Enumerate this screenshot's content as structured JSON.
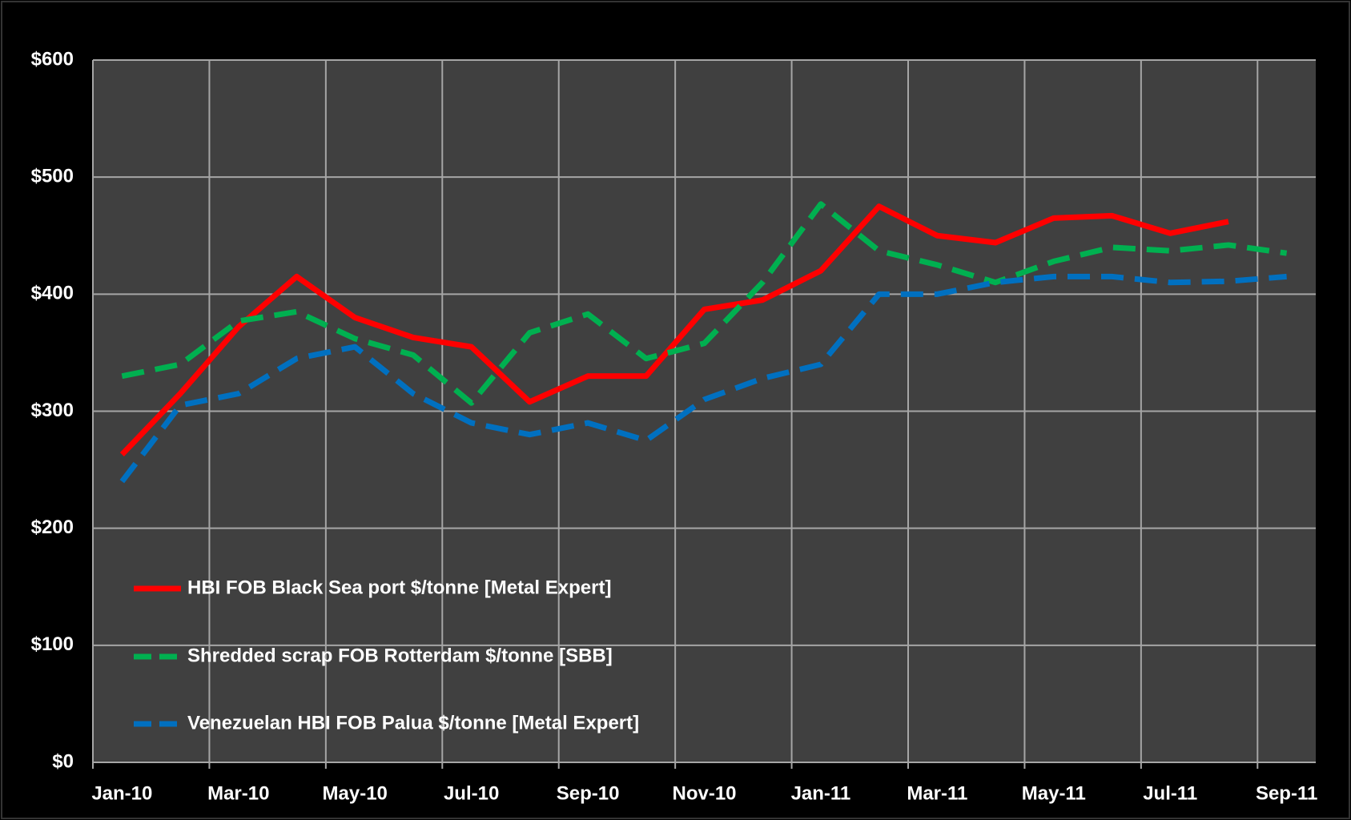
{
  "chart_data": {
    "type": "line",
    "categories": [
      "Jan-10",
      null,
      "Mar-10",
      null,
      "May-10",
      null,
      "Jul-10",
      null,
      "Sep-10",
      null,
      "Nov-10",
      null,
      "Jan-11",
      null,
      "Mar-11",
      null,
      "May-11",
      null,
      "Jul-11",
      null,
      "Sep-11"
    ],
    "series": [
      {
        "name": "HBI FOB Black Sea port $/tonne [Metal Expert]",
        "color": "#ff0000",
        "dash": "solid",
        "values": [
          263,
          315,
          372,
          415,
          380,
          363,
          355,
          308,
          330,
          330,
          387,
          395,
          420,
          475,
          450,
          444,
          465,
          467,
          452,
          462,
          null
        ]
      },
      {
        "name": "Shredded scrap FOB Rotterdam $/tonne [SBB]",
        "color": "#00b050",
        "dash": "dashed",
        "values": [
          330,
          340,
          377,
          385,
          362,
          348,
          307,
          367,
          383,
          345,
          358,
          410,
          477,
          437,
          425,
          410,
          428,
          440,
          437,
          442,
          435
        ]
      },
      {
        "name": "Venezuelan HBI FOB Palua $/tonne [Metal Expert]",
        "color": "#0070c0",
        "dash": "dashed",
        "values": [
          240,
          305,
          315,
          345,
          355,
          315,
          290,
          280,
          290,
          275,
          310,
          328,
          340,
          400,
          400,
          410,
          415,
          415,
          410,
          411,
          415
        ]
      }
    ],
    "ylim": [
      0,
      600
    ],
    "yticks": [
      {
        "value": 0,
        "label": "$0"
      },
      {
        "value": 100,
        "label": "$100"
      },
      {
        "value": 200,
        "label": "$200"
      },
      {
        "value": 300,
        "label": "$300"
      },
      {
        "value": 400,
        "label": "$400"
      },
      {
        "value": 500,
        "label": "$500"
      },
      {
        "value": 600,
        "label": "$600"
      }
    ],
    "grid": true,
    "legend": "lower left"
  }
}
